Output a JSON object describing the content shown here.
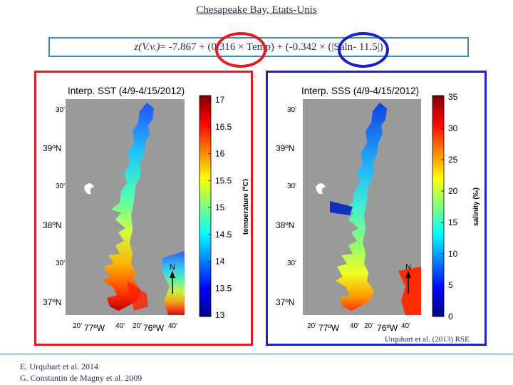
{
  "title": "Chesapeake Bay, Etats-Unis",
  "formula": {
    "lhs": "z(V.v.)",
    "rest": "= -7.867 + (0.316 × Temp) + (-0.342 × (|Saln- 11.5|)"
  },
  "colors": {
    "temp_ellipse": "#e02020",
    "sal_ellipse": "#1a22c8",
    "formula_border": "#3d8fa8",
    "map_background": "#9a9a9a"
  },
  "maps": [
    {
      "title": "Interp. SST (4/9-4/15/2012)",
      "colorbar_label": "temperature (ºC)",
      "colorbar_ticks": [
        "17",
        "16.5",
        "16",
        "15.5",
        "15",
        "14.5",
        "14",
        "13.5",
        "13"
      ],
      "colorbar_range": [
        13,
        17
      ],
      "lat_labels": [
        "30'",
        "39ºN",
        "30'",
        "38ºN",
        "30'",
        "37ºN"
      ],
      "lon_labels": [
        "20'",
        "77ºW",
        "40'",
        "20'",
        "76ºW",
        "40'"
      ],
      "north_label": "N"
    },
    {
      "title": "Interp. SSS (4/9-4/15/2012)",
      "colorbar_label": "salinity (‰)",
      "colorbar_ticks": [
        "35",
        "30",
        "25",
        "20",
        "15",
        "10",
        "5",
        "0"
      ],
      "colorbar_range": [
        0,
        35
      ],
      "lat_labels": [
        "30'",
        "39ºN",
        "30'",
        "38ºN",
        "30'",
        "37ºN"
      ],
      "lon_labels": [
        "20'",
        "77ºW",
        "40'",
        "20'",
        "76ºW",
        "40'"
      ],
      "north_label": "N"
    }
  ],
  "credit": "Urquhart et al. (2013) RSE",
  "references": [
    "E. Urquhart et al. 2014",
    "G. Constantin de Magny et al. 2009"
  ]
}
